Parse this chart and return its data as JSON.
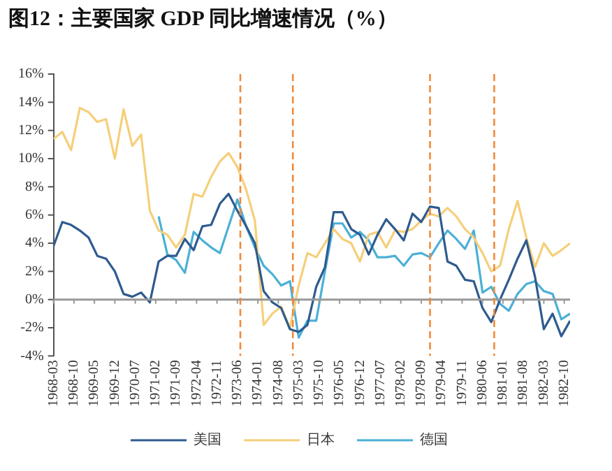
{
  "chart_data": {
    "type": "line",
    "title": "图12：主要国家 GDP 同比增速情况（%）",
    "x": [
      "1968-03",
      "1968-06",
      "1968-09",
      "1968-12",
      "1969-03",
      "1969-06",
      "1969-09",
      "1969-12",
      "1970-03",
      "1970-06",
      "1970-09",
      "1970-12",
      "1971-03",
      "1971-06",
      "1971-09",
      "1971-12",
      "1972-03",
      "1972-06",
      "1972-09",
      "1972-12",
      "1973-03",
      "1973-06",
      "1973-09",
      "1973-12",
      "1974-03",
      "1974-06",
      "1974-09",
      "1974-12",
      "1975-03",
      "1975-06",
      "1975-09",
      "1975-12",
      "1976-03",
      "1976-06",
      "1976-09",
      "1976-12",
      "1977-03",
      "1977-06",
      "1977-09",
      "1977-12",
      "1978-03",
      "1978-06",
      "1978-09",
      "1978-12",
      "1979-03",
      "1979-06",
      "1979-09",
      "1979-12",
      "1980-03",
      "1980-06",
      "1980-09",
      "1980-12",
      "1981-03",
      "1981-06",
      "1981-09",
      "1981-12",
      "1982-03",
      "1982-06",
      "1982-09",
      "1982-12"
    ],
    "series": [
      {
        "name": "美国",
        "color": "#2e5b8f",
        "values": [
          3.8,
          5.5,
          5.3,
          4.9,
          4.4,
          3.1,
          2.9,
          2.0,
          0.4,
          0.2,
          0.5,
          -0.2,
          2.7,
          3.1,
          3.1,
          4.3,
          3.5,
          5.2,
          5.3,
          6.8,
          7.5,
          6.3,
          5.2,
          4.0,
          0.6,
          -0.2,
          -0.6,
          -2.1,
          -2.3,
          -1.8,
          0.9,
          2.3,
          6.2,
          6.2,
          5.0,
          4.6,
          3.2,
          4.6,
          5.7,
          5.0,
          4.2,
          6.1,
          5.5,
          6.6,
          6.5,
          2.7,
          2.4,
          1.4,
          1.3,
          -0.6,
          -1.6,
          0,
          1.4,
          2.9,
          4.2,
          1.6,
          -2.1,
          -1.0,
          -2.6,
          -1.5
        ]
      },
      {
        "name": "日本",
        "color": "#f5cf7a",
        "values": [
          11.4,
          11.9,
          10.6,
          13.6,
          13.3,
          12.6,
          12.8,
          10.0,
          13.5,
          10.9,
          11.7,
          6.3,
          4.9,
          4.6,
          3.7,
          4.6,
          7.5,
          7.3,
          8.7,
          9.8,
          10.4,
          9.4,
          7.8,
          5.6,
          -1.8,
          -1.0,
          -0.5,
          -2.0,
          1.0,
          3.3,
          3.0,
          4.0,
          5.0,
          4.3,
          4.0,
          2.7,
          4.6,
          4.8,
          3.7,
          4.9,
          4.8,
          5.0,
          5.6,
          6.1,
          5.9,
          6.5,
          5.9,
          5.0,
          4.4,
          3.3,
          2.0,
          2.4,
          5.0,
          7.0,
          4.4,
          2.3,
          4.0,
          3.1,
          3.5,
          4.0
        ]
      },
      {
        "name": "德国",
        "color": "#4bb0d6",
        "x": [
          "1971-03",
          "1971-06",
          "1971-09",
          "1971-12",
          "1972-03",
          "1972-06",
          "1972-09",
          "1972-12",
          "1973-03",
          "1973-06",
          "1973-09",
          "1973-12",
          "1974-03",
          "1974-06",
          "1974-09",
          "1974-12",
          "1975-03",
          "1975-06",
          "1975-09",
          "1975-12",
          "1976-03",
          "1976-06",
          "1976-09",
          "1976-12",
          "1977-03",
          "1977-06",
          "1977-09",
          "1977-12",
          "1978-03",
          "1978-06",
          "1978-09",
          "1978-12",
          "1979-03",
          "1979-06",
          "1979-09",
          "1979-12",
          "1980-03",
          "1980-06",
          "1980-09",
          "1980-12",
          "1981-03",
          "1981-06",
          "1981-09",
          "1981-12",
          "1982-03",
          "1982-06",
          "1982-09",
          "1982-12"
        ],
        "values": [
          5.9,
          3.2,
          2.8,
          1.9,
          4.8,
          4.2,
          3.7,
          3.3,
          5.2,
          7.1,
          5.2,
          3.7,
          2.4,
          1.8,
          1.0,
          1.3,
          -2.7,
          -1.5,
          -1.5,
          2.0,
          5.4,
          5.4,
          4.4,
          4.8,
          4.2,
          3.0,
          3.0,
          3.1,
          2.4,
          3.2,
          3.3,
          3.0,
          4.0,
          4.9,
          4.3,
          3.6,
          4.9,
          0.5,
          0.9,
          -0.3,
          -0.8,
          0.4,
          1.1,
          1.3,
          0.6,
          0.4,
          -1.4,
          -1.0
        ]
      }
    ],
    "xlim": [
      "1968-03",
      "1982-12"
    ],
    "xticks": [
      "1968-03",
      "1968-10",
      "1969-05",
      "1969-12",
      "1970-07",
      "1971-02",
      "1971-09",
      "1972-04",
      "1972-11",
      "1973-06",
      "1974-01",
      "1974-08",
      "1975-03",
      "1975-10",
      "1976-05",
      "1976-12",
      "1977-07",
      "1978-02",
      "1978-09",
      "1979-04",
      "1979-11",
      "1980-06",
      "1981-01",
      "1981-08",
      "1982-03",
      "1982-10"
    ],
    "ylim": [
      -4,
      16
    ],
    "yticks": [
      {
        "value": -4,
        "label": "-4%"
      },
      {
        "value": -2,
        "label": "-2%"
      },
      {
        "value": 0,
        "label": "0%"
      },
      {
        "value": 2,
        "label": "2%"
      },
      {
        "value": 4,
        "label": "4%"
      },
      {
        "value": 6,
        "label": "6%"
      },
      {
        "value": 8,
        "label": "8%"
      },
      {
        "value": 10,
        "label": "10%"
      },
      {
        "value": 12,
        "label": "12%"
      },
      {
        "value": 14,
        "label": "14%"
      },
      {
        "value": 16,
        "label": "16%"
      }
    ],
    "ref_lines": [
      {
        "axis": "y",
        "value": 0,
        "color": "#999999",
        "line_style": "solid"
      },
      {
        "axis": "x",
        "value": "1973-07",
        "color": "#f08a3c",
        "line_style": "dashed"
      },
      {
        "axis": "x",
        "value": "1975-01",
        "color": "#f08a3c",
        "line_style": "dashed"
      },
      {
        "axis": "x",
        "value": "1978-12",
        "color": "#f08a3c",
        "line_style": "dashed"
      },
      {
        "axis": "x",
        "value": "1980-10",
        "color": "#f08a3c",
        "line_style": "dashed"
      }
    ],
    "grid": false,
    "legend": "bottom",
    "marker": "none",
    "line_style": "solid"
  }
}
